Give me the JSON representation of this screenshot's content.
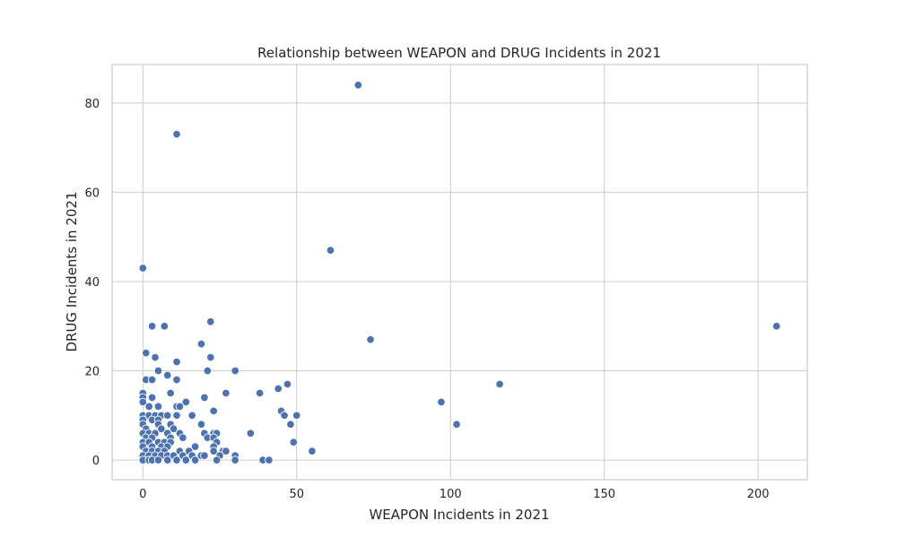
{
  "chart_data": {
    "type": "scatter",
    "title": "Relationship between WEAPON and DRUG Incidents in 2021",
    "xlabel": "WEAPON Incidents in 2021",
    "ylabel": "DRUG Incidents in 2021",
    "xlim": [
      -10,
      216
    ],
    "ylim": [
      -4.4,
      88.6
    ],
    "xticks": [
      0,
      50,
      100,
      150,
      200
    ],
    "yticks": [
      0,
      20,
      40,
      60,
      80
    ],
    "grid": true,
    "legend": "none",
    "colors": {
      "point": "#4c72b0",
      "grid": "#cccccc",
      "background": "#ffffff"
    },
    "series": [
      {
        "points": [
          [
            70,
            84
          ],
          [
            11,
            73
          ],
          [
            61,
            47
          ],
          [
            0,
            43
          ],
          [
            206,
            30
          ],
          [
            74,
            27
          ],
          [
            3,
            30
          ],
          [
            7,
            30
          ],
          [
            22,
            31
          ],
          [
            19,
            26
          ],
          [
            1,
            24
          ],
          [
            4,
            23
          ],
          [
            11,
            22
          ],
          [
            22,
            23
          ],
          [
            5,
            20
          ],
          [
            21,
            20
          ],
          [
            30,
            20
          ],
          [
            8,
            19
          ],
          [
            1,
            18
          ],
          [
            3,
            18
          ],
          [
            11,
            18
          ],
          [
            47,
            17
          ],
          [
            116,
            17
          ],
          [
            44,
            16
          ],
          [
            0,
            15
          ],
          [
            9,
            15
          ],
          [
            27,
            15
          ],
          [
            38,
            15
          ],
          [
            0,
            14
          ],
          [
            3,
            14
          ],
          [
            20,
            14
          ],
          [
            0,
            13
          ],
          [
            14,
            13
          ],
          [
            97,
            13
          ],
          [
            2,
            12
          ],
          [
            5,
            12
          ],
          [
            11,
            12
          ],
          [
            12,
            12
          ],
          [
            23,
            11
          ],
          [
            45,
            11
          ],
          [
            0,
            10
          ],
          [
            2,
            10
          ],
          [
            4,
            10
          ],
          [
            6,
            10
          ],
          [
            8,
            10
          ],
          [
            11,
            10
          ],
          [
            16,
            10
          ],
          [
            46,
            10
          ],
          [
            50,
            10
          ],
          [
            0,
            9
          ],
          [
            3,
            9
          ],
          [
            5,
            9
          ],
          [
            0,
            8
          ],
          [
            5,
            8
          ],
          [
            9,
            8
          ],
          [
            19,
            8
          ],
          [
            48,
            8
          ],
          [
            102,
            8
          ],
          [
            1,
            7
          ],
          [
            6,
            7
          ],
          [
            10,
            7
          ],
          [
            0,
            6
          ],
          [
            2,
            6
          ],
          [
            4,
            6
          ],
          [
            8,
            6
          ],
          [
            12,
            6
          ],
          [
            20,
            6
          ],
          [
            23,
            6
          ],
          [
            24,
            6
          ],
          [
            35,
            6
          ],
          [
            1,
            5
          ],
          [
            3,
            5
          ],
          [
            9,
            5
          ],
          [
            13,
            5
          ],
          [
            21,
            5
          ],
          [
            23,
            5
          ],
          [
            0,
            4
          ],
          [
            2,
            4
          ],
          [
            5,
            4
          ],
          [
            7,
            4
          ],
          [
            9,
            4
          ],
          [
            24,
            4
          ],
          [
            49,
            4
          ],
          [
            0,
            3
          ],
          [
            3,
            3
          ],
          [
            6,
            3
          ],
          [
            8,
            3
          ],
          [
            17,
            3
          ],
          [
            23,
            3
          ],
          [
            1,
            2
          ],
          [
            3,
            2
          ],
          [
            5,
            2
          ],
          [
            7,
            2
          ],
          [
            12,
            2
          ],
          [
            15,
            2
          ],
          [
            23,
            2
          ],
          [
            26,
            2
          ],
          [
            27,
            2
          ],
          [
            55,
            2
          ],
          [
            0,
            1
          ],
          [
            2,
            1
          ],
          [
            4,
            1
          ],
          [
            6,
            1
          ],
          [
            8,
            1
          ],
          [
            10,
            1
          ],
          [
            13,
            1
          ],
          [
            16,
            1
          ],
          [
            19,
            1
          ],
          [
            20,
            1
          ],
          [
            25,
            1
          ],
          [
            30,
            1
          ],
          [
            0,
            0
          ],
          [
            2,
            0
          ],
          [
            3,
            0
          ],
          [
            5,
            0
          ],
          [
            8,
            0
          ],
          [
            11,
            0
          ],
          [
            14,
            0
          ],
          [
            17,
            0
          ],
          [
            24,
            0
          ],
          [
            30,
            0
          ],
          [
            39,
            0
          ],
          [
            41,
            0
          ]
        ]
      }
    ]
  }
}
